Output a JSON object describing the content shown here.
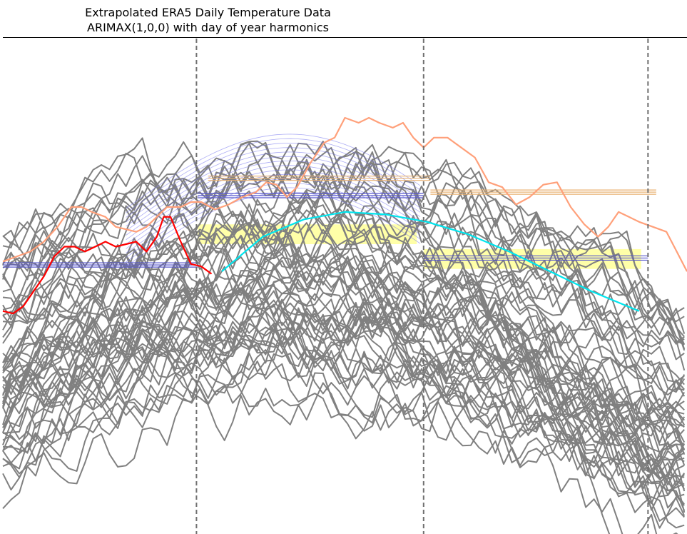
{
  "chart_data": {
    "type": "line",
    "title": [
      "Extrapolated ERA5 Daily Temperature Data",
      "ARIMAX(1,0,0) with day of year harmonics"
    ],
    "xlabel": "",
    "ylabel": "",
    "axes_visible": false,
    "top_spine": true,
    "xlim": [
      0,
      100
    ],
    "ylim": [
      0,
      100
    ],
    "vertical_dividers": {
      "x": [
        28.3,
        61.5,
        94.3
      ],
      "style": "dashed",
      "color": "#707070"
    },
    "ensemble": {
      "count": 60,
      "color": "#808080"
    },
    "series": [
      {
        "role": "observed",
        "color": "#ff0000",
        "x": [
          0,
          1.5,
          3,
          4.5,
          6,
          7.5,
          9,
          10.5,
          12,
          13.5,
          15,
          16.5,
          18,
          19.5,
          21,
          22.5,
          23.5,
          24.5,
          26,
          27.5,
          29,
          30.5
        ],
        "y": [
          45,
          44.5,
          46,
          49,
          52,
          56,
          58,
          58,
          57,
          58,
          59,
          58,
          58.5,
          59,
          57,
          60,
          64,
          64,
          59,
          54.5,
          54,
          52.5
        ]
      },
      {
        "role": "upper",
        "color": "#ffa07a",
        "x": [
          0,
          2,
          4,
          6,
          8,
          10,
          11.5,
          13,
          15,
          16.5,
          18,
          19.5,
          21,
          22.5,
          24,
          26,
          27.5,
          29,
          31,
          33,
          35,
          37,
          38.5,
          40,
          41.5,
          43,
          45,
          47,
          48.5,
          50,
          52,
          53.5,
          55,
          57,
          58.5,
          60,
          61.5,
          63,
          65,
          67,
          69,
          71,
          73,
          75,
          77,
          79,
          81,
          83,
          85,
          87,
          88.5,
          90,
          91.5,
          93,
          95,
          97,
          98.5,
          100
        ],
        "y": [
          55,
          56,
          57,
          59,
          62,
          66,
          66,
          65,
          64,
          62,
          61.5,
          61,
          62,
          64,
          66,
          66,
          67,
          67,
          65.5,
          66.5,
          68,
          69,
          71,
          70.5,
          68,
          70,
          75,
          79,
          80,
          84,
          83,
          84,
          83,
          82,
          83,
          80,
          78,
          80,
          80,
          78,
          76,
          71,
          70,
          66.5,
          68,
          70.5,
          71,
          66,
          62.5,
          60,
          62,
          65,
          64,
          63,
          62,
          61,
          57,
          53
        ]
      },
      {
        "role": "fitted",
        "color": "#00e5ee",
        "x": [
          32,
          38,
          44,
          50,
          56,
          62,
          68,
          74,
          80,
          86,
          93
        ],
        "y": [
          53,
          60,
          63.5,
          65,
          64.5,
          63,
          60.5,
          57,
          53,
          49,
          45
        ]
      }
    ],
    "highlight_bands": [
      {
        "x": [
          28.5,
          60.5
        ],
        "y": [
          58.5,
          62.5
        ],
        "color": "#ffff99"
      },
      {
        "x": [
          61.5,
          93.3
        ],
        "y": [
          53.5,
          57.5
        ],
        "color": "#ffff99"
      }
    ],
    "reference_lines": [
      {
        "color": "#5555cc",
        "levels": [
          [
            0,
            28.5,
            54.3
          ],
          [
            28.5,
            61.5,
            68.3
          ],
          [
            61.5,
            94.3,
            55.7
          ]
        ]
      },
      {
        "color": "#e8b070",
        "levels": [
          [
            30,
            62.5,
            71.8
          ],
          [
            62.5,
            95.5,
            69
          ]
        ]
      }
    ]
  }
}
